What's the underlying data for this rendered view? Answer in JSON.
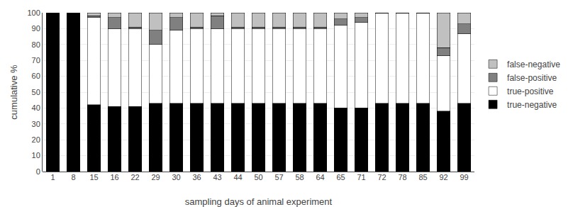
{
  "chart_data": {
    "type": "bar",
    "stacked": true,
    "xlabel": "sampling days of animal experiment",
    "ylabel": "cumulative %",
    "categories": [
      "1",
      "8",
      "15",
      "16",
      "22",
      "29",
      "30",
      "36",
      "43",
      "44",
      "50",
      "57",
      "58",
      "64",
      "65",
      "71",
      "72",
      "78",
      "85",
      "92",
      "99"
    ],
    "series": [
      {
        "name": "true-negative",
        "color": "#000000",
        "values": [
          100,
          100,
          42,
          41,
          41,
          43,
          43,
          43,
          43,
          43,
          43,
          43,
          43,
          43,
          40,
          40,
          43,
          43,
          43,
          38,
          43
        ]
      },
      {
        "name": "true-positive",
        "color": "#ffffff",
        "values": [
          0,
          0,
          55,
          49,
          49,
          37,
          46,
          47,
          47,
          47,
          47,
          47,
          47,
          47,
          52,
          54,
          57,
          57,
          57,
          35,
          44
        ]
      },
      {
        "name": "false-positive",
        "color": "#808080",
        "values": [
          0,
          0,
          1,
          7,
          1,
          9,
          8,
          1,
          8,
          1,
          1,
          1,
          1,
          1,
          4,
          3,
          0,
          0,
          0,
          5,
          6
        ]
      },
      {
        "name": "false-negative",
        "color": "#c0c0c0",
        "values": [
          0,
          0,
          2,
          3,
          9,
          11,
          3,
          9,
          2,
          9,
          9,
          9,
          9,
          9,
          4,
          3,
          0,
          0,
          0,
          22,
          7
        ]
      }
    ],
    "ylim": [
      0,
      100
    ],
    "yticks": [
      0,
      10,
      20,
      30,
      40,
      50,
      60,
      70,
      80,
      90,
      100
    ],
    "grid": true,
    "legend": "right"
  }
}
